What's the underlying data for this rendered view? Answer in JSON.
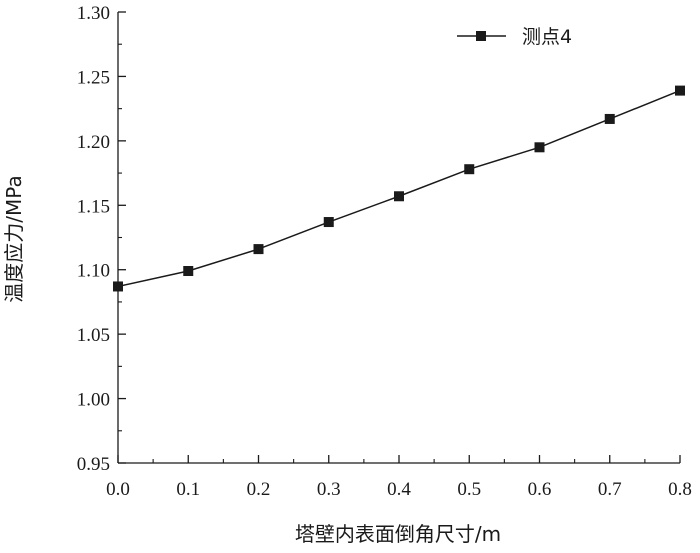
{
  "chart_data": {
    "type": "line",
    "x": [
      0.0,
      0.1,
      0.2,
      0.3,
      0.4,
      0.5,
      0.6,
      0.7,
      0.8
    ],
    "series": [
      {
        "name": "测点4",
        "values": [
          1.087,
          1.099,
          1.116,
          1.137,
          1.157,
          1.178,
          1.195,
          1.217,
          1.239
        ],
        "marker": "square",
        "color": "#1a1a1a"
      }
    ],
    "xlabel": "塔壁内表面倒角尺寸/m",
    "ylabel": "温度应力/MPa",
    "xlim": [
      0.0,
      0.8
    ],
    "ylim": [
      0.95,
      1.3
    ],
    "xticks": [
      "0.0",
      "0.1",
      "0.2",
      "0.3",
      "0.4",
      "0.5",
      "0.6",
      "0.7",
      "0.8"
    ],
    "yticks": [
      "0.95",
      "1.00",
      "1.05",
      "1.10",
      "1.15",
      "1.20",
      "1.25",
      "1.30"
    ],
    "grid": false,
    "legend_position": "top-right"
  }
}
